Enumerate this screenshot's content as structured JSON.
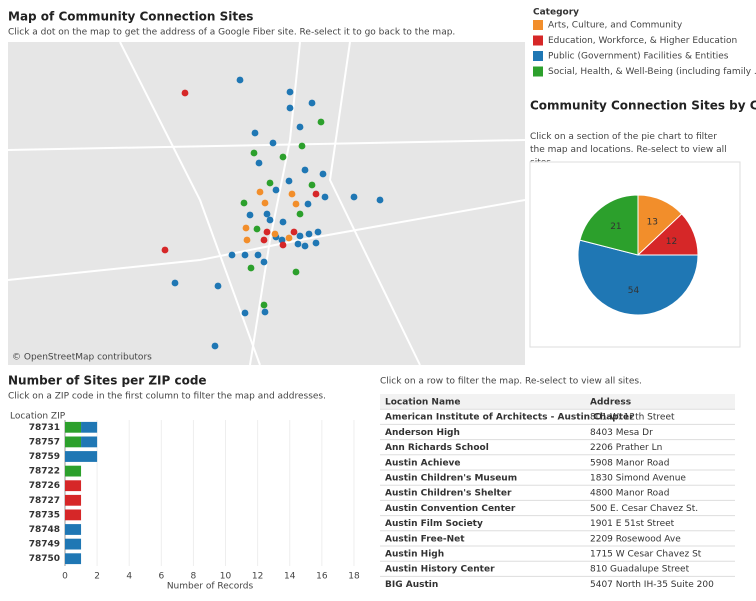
{
  "map": {
    "title": "Map of Community Connection Sites",
    "subtitle": "Click a dot on the map to get the address of a Google Fiber site. Re-select it to go back to the map.",
    "credit": "© OpenStreetMap contributors"
  },
  "legend_title": "Category",
  "chart_data": [
    {
      "type": "pie",
      "title": "Community Connection Sites by Category",
      "subtitle": "Click on a section of the pie chart to filter the map and locations. Re-select to view all sites.",
      "categories": [
        "Arts, Culture, and Community",
        "Education, Workforce, & Higher Education",
        "Public (Government) Facilities & Entities",
        "Social, Health, & Well-Being (including family ..."
      ],
      "values": [
        13,
        12,
        54,
        21
      ],
      "colors": [
        "#f28e2b",
        "#d62728",
        "#1f77b4",
        "#2ca02c"
      ]
    },
    {
      "type": "bar",
      "orientation": "horizontal",
      "stacked": true,
      "title": "Number of Sites per ZIP code",
      "subtitle": "Click on a ZIP code in the first column to filter the map and addresses.",
      "y_label": "Location ZIP",
      "x_label": "Number of Records",
      "categories": [
        "78731",
        "78757",
        "78759",
        "78722",
        "78726",
        "78727",
        "78735",
        "78748",
        "78749",
        "78750"
      ],
      "series": [
        {
          "color": "#2ca02c",
          "values": [
            1,
            1,
            null,
            1,
            null,
            null,
            null,
            null,
            null,
            null
          ]
        },
        {
          "color": "#1f77b4",
          "values": [
            1,
            1,
            2,
            null,
            null,
            null,
            null,
            1,
            1,
            1
          ]
        },
        {
          "color": "#d62728",
          "values": [
            null,
            null,
            null,
            null,
            1,
            1,
            1,
            null,
            null,
            null
          ]
        }
      ],
      "xlim": [
        0,
        19
      ],
      "xticks": [
        0,
        2,
        4,
        6,
        8,
        10,
        12,
        14,
        16,
        18
      ]
    }
  ],
  "table": {
    "note": "Click on a row to filter the map. Re-select to view all sites.",
    "columns": [
      "Location Name",
      "Address"
    ],
    "rows": [
      [
        "American Institute of Architects - Austin Chapter",
        "801 W. 12th Street"
      ],
      [
        "Anderson High",
        "8403 Mesa Dr"
      ],
      [
        "Ann Richards School",
        "2206 Prather Ln"
      ],
      [
        "Austin Achieve",
        "5908 Manor Road"
      ],
      [
        "Austin Children's Museum",
        "1830 Simond Avenue"
      ],
      [
        "Austin Children's Shelter",
        "4800 Manor Road"
      ],
      [
        "Austin Convention Center",
        "500 E. Cesar Chavez St."
      ],
      [
        "Austin Film Society",
        "1901 E 51st Street"
      ],
      [
        "Austin Free-Net",
        "2209 Rosewood Ave"
      ],
      [
        "Austin High",
        "1715 W Cesar Chavez St"
      ],
      [
        "Austin History Center",
        "810 Guadalupe Street"
      ],
      [
        "BIG Austin",
        "5407 North IH-35 Suite 200"
      ]
    ]
  }
}
